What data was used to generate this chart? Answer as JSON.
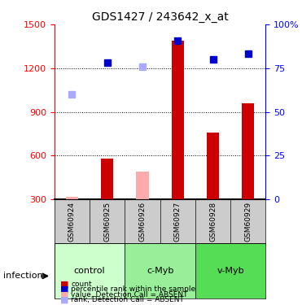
{
  "title": "GDS1427 / 243642_x_at",
  "samples": [
    "GSM60924",
    "GSM60925",
    "GSM60926",
    "GSM60927",
    "GSM60928",
    "GSM60929"
  ],
  "groups": [
    {
      "name": "control",
      "indices": [
        0,
        1
      ],
      "color": "#ccffcc"
    },
    {
      "name": "c-Myb",
      "indices": [
        2,
        3
      ],
      "color": "#99ff99"
    },
    {
      "name": "v-Myb",
      "indices": [
        4,
        5
      ],
      "color": "#66ff66"
    }
  ],
  "bar_values": [
    null,
    580,
    null,
    1390,
    760,
    960
  ],
  "bar_absent": [
    320,
    null,
    490,
    null,
    null,
    null
  ],
  "bar_colors_present": "#cc0000",
  "bar_colors_absent": "#ffaaaa",
  "rank_present": [
    null,
    1240,
    null,
    1390,
    1260,
    1300
  ],
  "rank_absent": [
    1020,
    null,
    1210,
    null,
    null,
    null
  ],
  "rank_color_present": "#0000cc",
  "rank_color_absent": "#aaaaff",
  "ylim_left": [
    300,
    1500
  ],
  "ylim_right": [
    0,
    100
  ],
  "yticks_left": [
    300,
    600,
    900,
    1200,
    1500
  ],
  "yticks_right": [
    0,
    25,
    50,
    75,
    100
  ],
  "ytick_labels_right": [
    "0",
    "25",
    "50",
    "75",
    "100%"
  ],
  "infection_label": "infection",
  "legend_items": [
    {
      "color": "#cc0000",
      "label": "count"
    },
    {
      "color": "#0000cc",
      "label": "percentile rank within the sample"
    },
    {
      "color": "#ffaaaa",
      "label": "value, Detection Call = ABSENT"
    },
    {
      "color": "#aaaaff",
      "label": "rank, Detection Call = ABSENT"
    }
  ]
}
